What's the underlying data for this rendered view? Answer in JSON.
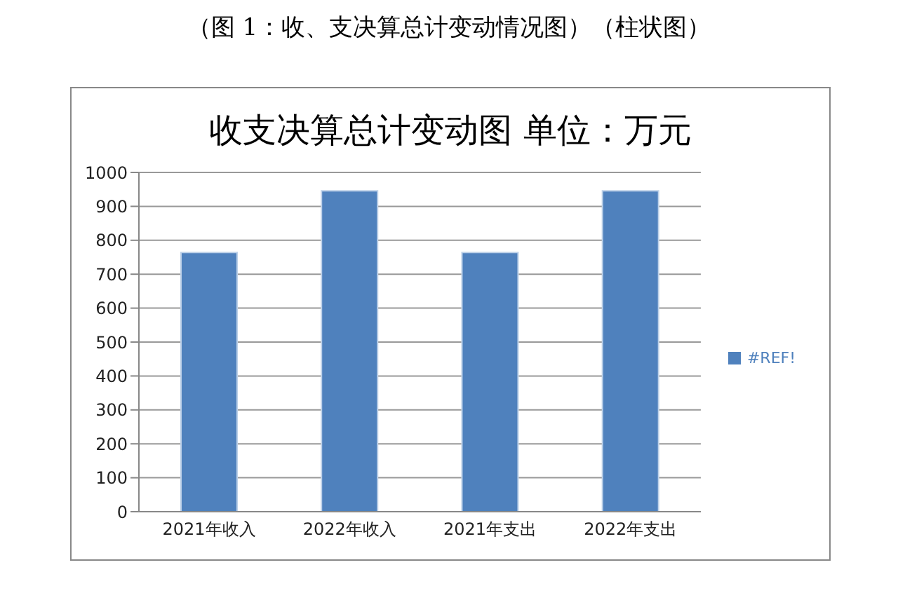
{
  "chart_data": {
    "type": "bar",
    "title": "收支决算总计变动图 单位：万元",
    "annotations": [
      "（图 1：收、支决算总计变动情况图）（柱状图）"
    ],
    "categories": [
      "2021年收入",
      "2022年收入",
      "2021年支出",
      "2022年支出"
    ],
    "series": [
      {
        "name": "#REF!",
        "color": "#4f81bd",
        "values": [
          764,
          946,
          764,
          946
        ]
      }
    ],
    "ylim": [
      0,
      1000
    ],
    "yticks": [
      0,
      100,
      200,
      300,
      400,
      500,
      600,
      700,
      800,
      900,
      1000
    ],
    "grid": "y",
    "legend": "right"
  }
}
